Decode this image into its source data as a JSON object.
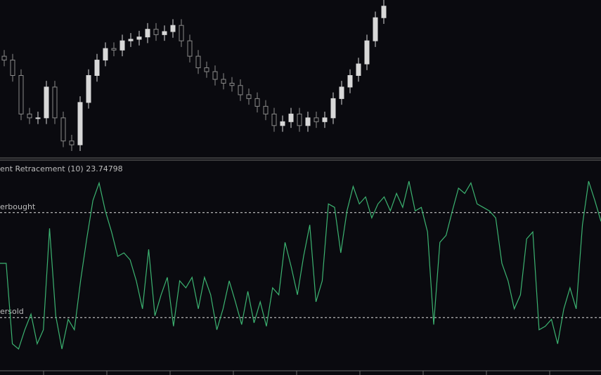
{
  "chart_data": [
    {
      "type": "candlestick",
      "bull_color": "#d8d8d8",
      "bear_color": "#8a8a8a",
      "open": [
        160,
        155,
        135,
        85,
        80,
        80,
        120,
        80,
        50,
        45,
        100,
        135,
        155,
        170,
        168,
        180,
        182,
        185,
        195,
        188,
        192,
        200,
        180,
        160,
        145,
        140,
        130,
        125,
        122,
        110,
        105,
        95,
        85,
        70,
        75,
        85,
        70,
        80,
        75,
        80,
        105,
        120,
        135,
        150,
        180,
        210
      ],
      "high": [
        168,
        163,
        143,
        93,
        88,
        128,
        128,
        88,
        58,
        108,
        143,
        163,
        178,
        178,
        188,
        190,
        193,
        203,
        203,
        200,
        208,
        208,
        188,
        168,
        153,
        148,
        138,
        133,
        130,
        118,
        113,
        103,
        93,
        83,
        93,
        93,
        88,
        88,
        88,
        113,
        128,
        143,
        158,
        188,
        218,
        233
      ],
      "low": [
        147,
        127,
        77,
        72,
        72,
        72,
        72,
        42,
        37,
        37,
        92,
        127,
        147,
        160,
        160,
        172,
        174,
        177,
        180,
        180,
        184,
        172,
        152,
        137,
        132,
        122,
        117,
        114,
        102,
        97,
        87,
        77,
        62,
        62,
        67,
        62,
        62,
        67,
        67,
        72,
        97,
        112,
        127,
        142,
        172,
        202
      ],
      "close": [
        155,
        135,
        85,
        80,
        80,
        120,
        80,
        50,
        45,
        100,
        135,
        155,
        170,
        168,
        180,
        182,
        185,
        195,
        188,
        192,
        200,
        180,
        160,
        145,
        140,
        130,
        125,
        122,
        110,
        105,
        95,
        85,
        70,
        75,
        85,
        70,
        80,
        75,
        80,
        105,
        120,
        135,
        150,
        180,
        210,
        225
      ]
    },
    {
      "type": "line",
      "title": "ent Retracement (10) 23.74798",
      "color": "#3cb371",
      "ylim": [
        0,
        100
      ],
      "levels": [
        {
          "value": 80,
          "label": "erbought"
        },
        {
          "value": 20,
          "label": "ersold"
        }
      ],
      "values": [
        51,
        51,
        5,
        2,
        13,
        22,
        5,
        13,
        71,
        21,
        2,
        19,
        13,
        41,
        65,
        87,
        97,
        81,
        69,
        55,
        57,
        53,
        41,
        25,
        59,
        21,
        33,
        43,
        15,
        41,
        37,
        43,
        25,
        43,
        33,
        13,
        25,
        41,
        29,
        16,
        35,
        17,
        29,
        15,
        37,
        33,
        63,
        49,
        33,
        55,
        73,
        29,
        41,
        85,
        83,
        57,
        81,
        95,
        85,
        89,
        77,
        85,
        89,
        81,
        91,
        83,
        98,
        81,
        83,
        69,
        16,
        63,
        67,
        81,
        94,
        91,
        97,
        85,
        83,
        81,
        77,
        51,
        41,
        25,
        33,
        65,
        69,
        13,
        15,
        19,
        5,
        25,
        37,
        25,
        73,
        98,
        87,
        75
      ]
    }
  ]
}
